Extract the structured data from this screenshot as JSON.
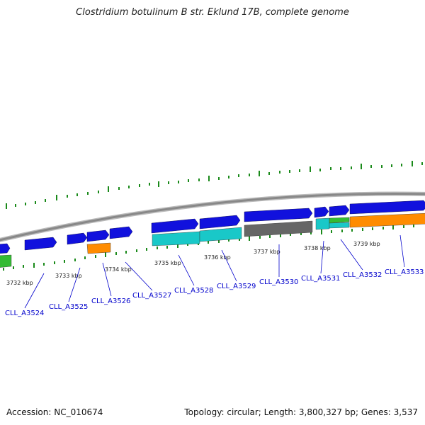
{
  "title": "Clostridium botulinum B str. Eklund 17B, complete genome",
  "footer": {
    "accession": "Accession: NC_010674",
    "summary": "Topology: circular; Length: 3,800,327 bp; Genes: 3,537"
  },
  "colors": {
    "cds_forward": "#1111dd",
    "cds_light": "#19c8c8",
    "cds_gray": "#666666",
    "cds_orange": "#ff8c00",
    "cds_green": "#33bb33",
    "tick": "#1a8a1a",
    "backbone": "#888888",
    "label": "#0000cc"
  },
  "scale_ticks": [
    "3732 kbp",
    "3733 kbp",
    "3734 kbp",
    "3735 kbp",
    "3736 kbp",
    "3737 kbp",
    "3738 kbp",
    "3739 kbp"
  ],
  "gene_labels": [
    "CLL_A3524",
    "CLL_A3525",
    "CLL_A3526",
    "CLL_A3527",
    "CLL_A3528",
    "CLL_A3529",
    "CLL_A3530",
    "CLL_A3531",
    "CLL_A3532",
    "CLL_A3533"
  ]
}
